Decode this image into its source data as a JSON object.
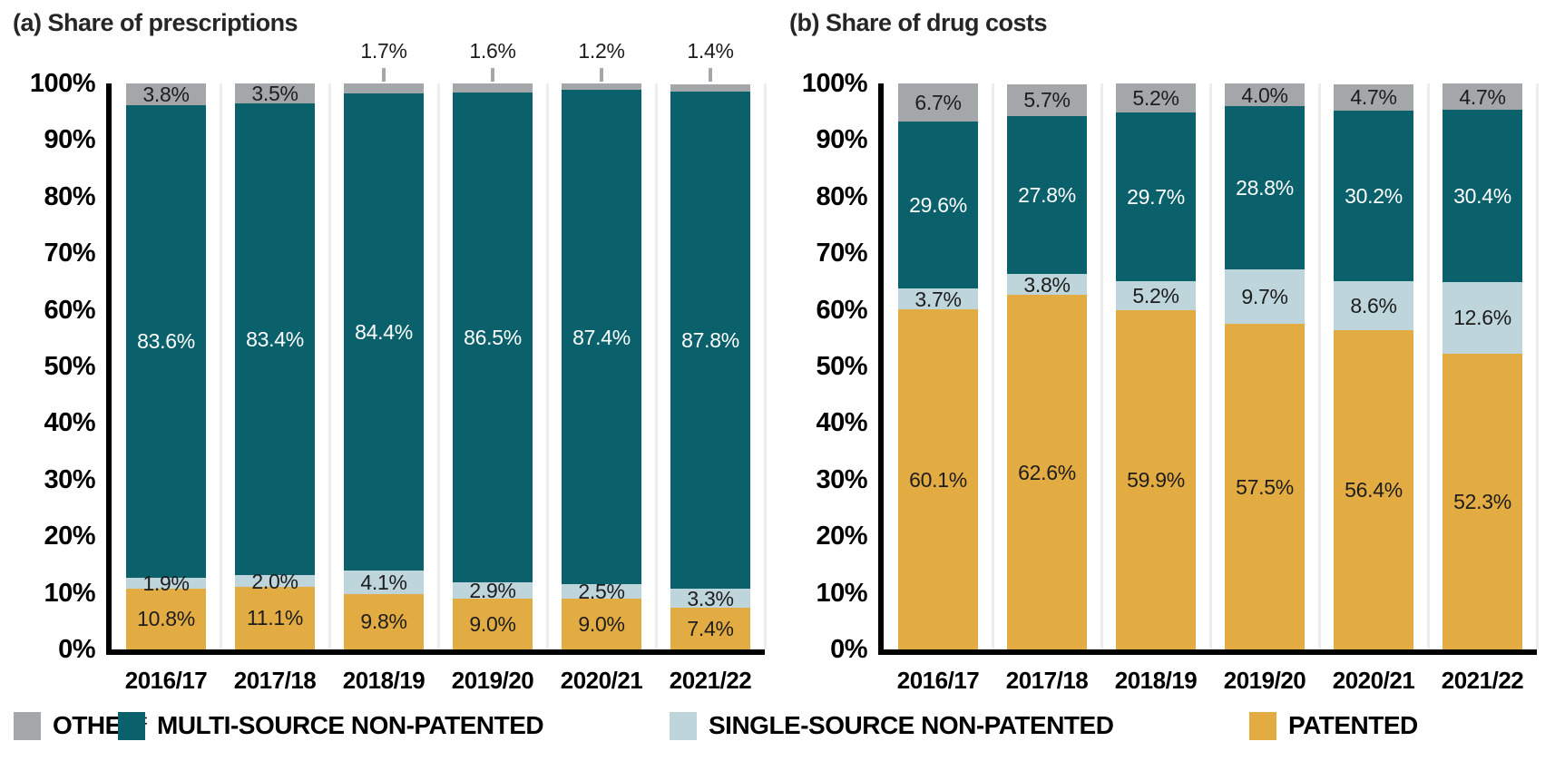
{
  "page": {
    "background": "#FFFFFF"
  },
  "chart_data": [
    {
      "id": "share-of-prescriptions",
      "type": "bar",
      "stacked": true,
      "title": "(a) Share of prescriptions",
      "xlabel": "",
      "ylabel": "",
      "ylim": [
        0,
        100
      ],
      "grid": "faint vertical separators between bars",
      "y_ticks": [
        "0%",
        "10%",
        "20%",
        "30%",
        "40%",
        "50%",
        "60%",
        "70%",
        "80%",
        "90%",
        "100%"
      ],
      "categories": [
        "2016/17",
        "2017/18",
        "2018/19",
        "2019/20",
        "2020/21",
        "2021/22"
      ],
      "series": [
        {
          "id": "patented",
          "name": "PATENTED",
          "color": "#E3AC42",
          "label_color": "#1D1D1D",
          "values": [
            10.8,
            11.1,
            9.8,
            9.0,
            9.0,
            7.4
          ]
        },
        {
          "id": "single-source-non-patented",
          "name": "SINGLE-SOURCE NON-PATENTED",
          "color": "#BDD5DB",
          "label_color": "#1D1D1D",
          "values": [
            1.9,
            2.0,
            4.1,
            2.9,
            2.5,
            3.3
          ]
        },
        {
          "id": "multi-source-non-patented",
          "name": "MULTI-SOURCE NON-PATENTED",
          "color": "#0A616C",
          "label_color": "#FFFFFF",
          "values": [
            83.6,
            83.4,
            84.4,
            86.5,
            87.4,
            87.8
          ]
        },
        {
          "id": "other",
          "name": "OTHER‡",
          "color": "#A4A7A9",
          "label_color": "#1D1D1D",
          "values": [
            3.8,
            3.5,
            1.7,
            1.6,
            1.2,
            1.4
          ],
          "labels_outside": [
            false,
            false,
            true,
            true,
            true,
            true
          ]
        }
      ]
    },
    {
      "id": "share-of-drug-costs",
      "type": "bar",
      "stacked": true,
      "title": "(b) Share of drug costs",
      "xlabel": "",
      "ylabel": "",
      "ylim": [
        0,
        100
      ],
      "grid": "faint vertical separators between bars",
      "y_ticks": [
        "0%",
        "10%",
        "20%",
        "30%",
        "40%",
        "50%",
        "60%",
        "70%",
        "80%",
        "90%",
        "100%"
      ],
      "categories": [
        "2016/17",
        "2017/18",
        "2018/19",
        "2019/20",
        "2020/21",
        "2021/22"
      ],
      "series": [
        {
          "id": "patented",
          "name": "PATENTED",
          "color": "#E3AC42",
          "label_color": "#1D1D1D",
          "values": [
            60.1,
            62.6,
            59.9,
            57.5,
            56.4,
            52.3
          ]
        },
        {
          "id": "single-source-non-patented",
          "name": "SINGLE-SOURCE NON-PATENTED",
          "color": "#BDD5DB",
          "label_color": "#1D1D1D",
          "values": [
            3.7,
            3.8,
            5.2,
            9.7,
            8.6,
            12.6
          ]
        },
        {
          "id": "multi-source-non-patented",
          "name": "MULTI-SOURCE NON-PATENTED",
          "color": "#0A616C",
          "label_color": "#FFFFFF",
          "values": [
            29.6,
            27.8,
            29.7,
            28.8,
            30.2,
            30.4
          ]
        },
        {
          "id": "other",
          "name": "OTHER‡",
          "color": "#A4A7A9",
          "label_color": "#1D1D1D",
          "values": [
            6.7,
            5.7,
            5.2,
            4.0,
            4.7,
            4.7
          ],
          "labels_outside": [
            false,
            false,
            false,
            false,
            false,
            false
          ]
        }
      ]
    }
  ],
  "legend": {
    "position": "bottom",
    "items": [
      {
        "id": "other",
        "label": "OTHER",
        "suffix": "‡",
        "color": "#A4A7A9"
      },
      {
        "id": "multi-source-non-patented",
        "label": "MULTI-SOURCE NON-PATENTED",
        "suffix": "",
        "color": "#0A616C"
      },
      {
        "id": "single-source-non-patented",
        "label": "SINGLE-SOURCE NON-PATENTED",
        "suffix": "",
        "color": "#BDD5DB"
      },
      {
        "id": "patented",
        "label": "PATENTED",
        "suffix": "",
        "color": "#E3AC42"
      }
    ]
  }
}
